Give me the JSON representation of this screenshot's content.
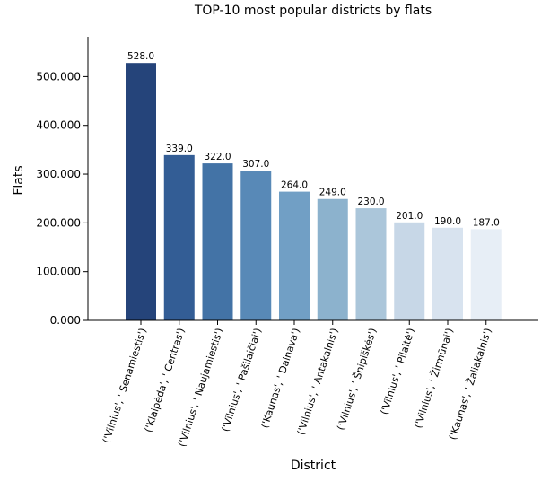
{
  "chart_data": {
    "type": "bar",
    "title": "TOP-10 most popular districts by flats",
    "xlabel": "District",
    "ylabel": "Flats",
    "ylim": [
      0,
      580
    ],
    "yticks": [
      0,
      100,
      200,
      300,
      400,
      500
    ],
    "ytick_labels": [
      "0.000",
      "100.000",
      "200.000",
      "300.000",
      "400.000",
      "500.000"
    ],
    "categories": [
      "('Vilnius', ' Senamiestis')",
      "('Klaipėda', ' Centras')",
      "('Vilnius', ' Naujamiestis')",
      "('Vilnius', ' Pašilaičiai')",
      "('Kaunas', ' Dainava')",
      "('Vilnius', ' Antakalnis')",
      "('Vilnius', ' Šnipiškės')",
      "('Vilnius', ' Pilaitė')",
      "('Vilnius', ' Žirmūnai')",
      "('Kaunas', ' Žaliakalnis')"
    ],
    "values": [
      528.0,
      339.0,
      322.0,
      307.0,
      264.0,
      249.0,
      230.0,
      201.0,
      190.0,
      187.0
    ],
    "value_labels": [
      "528.0",
      "339.0",
      "322.0",
      "307.0",
      "264.0",
      "249.0",
      "230.0",
      "201.0",
      "190.0",
      "187.0"
    ],
    "colors": [
      "#25447a",
      "#335d95",
      "#4373a6",
      "#5889b7",
      "#719fc5",
      "#8cb2cd",
      "#abc6da",
      "#c7d7e7",
      "#d8e3ef",
      "#e7eef6"
    ],
    "grid": false,
    "legend": "none"
  }
}
